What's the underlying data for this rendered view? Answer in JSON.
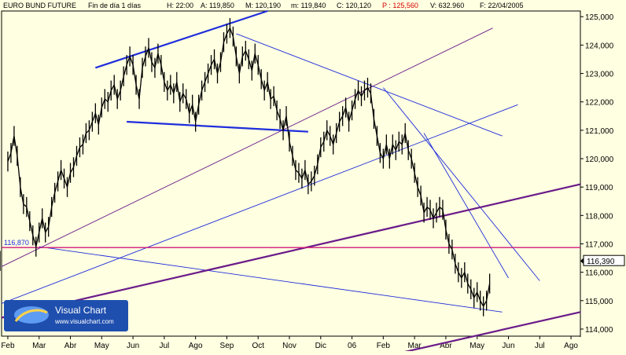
{
  "header": {
    "title": "EURO BUND FUTURE",
    "timeframe": "Fin de día 1 días",
    "hour": "H: 22:00",
    "high": "A: 119,850",
    "max": "M: 120,190",
    "min": "m: 119,840",
    "close": "C: 120,120",
    "p": "P : 125,560",
    "volume": "V: 632.960",
    "date": "F: 22/04/2005"
  },
  "colors": {
    "background": "#ffffe1",
    "text": "#000000",
    "price_line": "#000000",
    "trend_blue": "#1f2ddc",
    "channel_purple": "#6a1b8a",
    "support_magenta": "#d0187a",
    "grid": "#c8c8c8",
    "header_red": "#d40000",
    "scale_panel": "#ffffe1"
  },
  "logo": {
    "brand": "Visual Chart",
    "url": "www.visualchart.com",
    "icon": "visualchart-logo-icon"
  },
  "price_label_left": "116,870",
  "current_price_tag": "116,390",
  "chart_data": {
    "type": "line",
    "title": "EURO BUND FUTURE",
    "x_tick_labels": [
      "Feb",
      "Mar",
      "Abr",
      "May",
      "Jun",
      "Jul",
      "Ago",
      "Sep",
      "Oct",
      "Nov",
      "Dic",
      "06",
      "Feb",
      "Mar",
      "Abr",
      "May",
      "Jun",
      "Jul",
      "Ago"
    ],
    "x_tick_index": [
      0,
      1,
      2,
      3,
      4,
      5,
      6,
      7,
      8,
      9,
      10,
      11,
      12,
      13,
      14,
      15,
      16,
      17,
      18
    ],
    "y_tick_labels": [
      "114,000",
      "115,000",
      "116,000",
      "117,000",
      "118,000",
      "119,000",
      "120,000",
      "121,000",
      "122,000",
      "123,000",
      "124,000",
      "125,000"
    ],
    "y_ticks": [
      114,
      115,
      116,
      117,
      118,
      119,
      120,
      121,
      122,
      123,
      124,
      125
    ],
    "ylim": [
      113.75,
      125.2
    ],
    "xlim": [
      -0.2,
      18.3
    ],
    "grid": false,
    "series": [
      {
        "points_month_index": [
          0.0,
          0.1,
          0.2,
          0.3,
          0.4,
          0.5,
          0.6,
          0.7,
          0.8,
          0.9,
          1.0,
          1.1,
          1.2,
          1.3,
          1.4,
          1.5,
          1.6,
          1.7,
          1.8,
          1.9,
          2.0,
          2.1,
          2.2,
          2.3,
          2.4,
          2.5,
          2.6,
          2.7,
          2.8,
          2.9,
          3.0,
          3.1,
          3.2,
          3.3,
          3.4,
          3.5,
          3.6,
          3.7,
          3.8,
          3.9,
          4.0,
          4.1,
          4.2,
          4.3,
          4.4,
          4.5,
          4.6,
          4.7,
          4.8,
          4.9,
          5.0,
          5.1,
          5.2,
          5.3,
          5.4,
          5.5,
          5.6,
          5.7,
          5.8,
          5.9,
          6.0,
          6.1,
          6.2,
          6.3,
          6.4,
          6.5,
          6.6,
          6.7,
          6.8,
          6.9,
          7.0,
          7.1,
          7.2,
          7.3,
          7.4,
          7.5,
          7.6,
          7.7,
          7.8,
          7.9,
          8.0,
          8.1,
          8.2,
          8.3,
          8.4,
          8.5,
          8.6,
          8.7,
          8.8,
          8.9,
          9.0,
          9.1,
          9.2,
          9.3,
          9.4,
          9.5,
          9.6,
          9.7,
          9.8,
          9.9,
          10.0,
          10.1,
          10.2,
          10.3,
          10.4,
          10.5,
          10.6,
          10.7,
          10.8,
          10.9,
          11.0,
          11.1,
          11.2,
          11.3,
          11.4,
          11.5,
          11.6,
          11.7,
          11.8,
          11.9,
          12.0,
          12.1,
          12.2,
          12.3,
          12.4,
          12.5,
          12.6,
          12.7,
          12.8,
          12.9,
          13.0,
          13.1,
          13.2,
          13.3,
          13.4,
          13.5,
          13.6,
          13.7,
          13.8,
          13.9,
          14.0,
          14.1,
          14.2,
          14.3,
          14.4,
          14.5,
          14.6,
          14.7,
          14.8,
          14.9,
          15.0,
          15.1,
          15.2,
          15.3,
          15.4
        ],
        "values": [
          119.9,
          120.2,
          120.8,
          120.1,
          119.0,
          118.4,
          118.3,
          117.8,
          117.3,
          116.9,
          117.4,
          117.9,
          117.4,
          117.6,
          118.3,
          118.8,
          119.2,
          119.6,
          119.3,
          119.0,
          119.5,
          119.7,
          120.1,
          120.4,
          120.5,
          120.9,
          121.0,
          121.3,
          121.6,
          121.2,
          121.8,
          122.1,
          122.0,
          122.4,
          122.6,
          122.1,
          122.4,
          122.9,
          123.3,
          123.6,
          123.3,
          122.6,
          122.1,
          123.2,
          123.6,
          123.9,
          123.4,
          123.2,
          123.7,
          123.3,
          122.7,
          122.4,
          122.6,
          122.3,
          122.7,
          122.0,
          122.3,
          122.1,
          121.6,
          121.9,
          121.3,
          121.9,
          122.4,
          122.7,
          123.0,
          123.3,
          123.5,
          123.0,
          123.4,
          124.1,
          124.4,
          124.6,
          124.3,
          123.6,
          123.0,
          123.6,
          123.8,
          123.5,
          123.1,
          123.7,
          123.3,
          122.8,
          122.4,
          122.7,
          122.1,
          122.2,
          121.7,
          121.4,
          121.0,
          121.5,
          120.6,
          120.1,
          119.6,
          119.5,
          119.3,
          119.6,
          119.1,
          119.2,
          119.4,
          119.8,
          120.4,
          120.6,
          121.0,
          120.8,
          120.5,
          120.9,
          121.3,
          121.5,
          121.8,
          121.3,
          121.7,
          122.1,
          122.4,
          122.2,
          122.4,
          122.5,
          122.3,
          121.4,
          120.8,
          120.2,
          120.0,
          120.5,
          120.0,
          120.5,
          120.3,
          120.6,
          120.5,
          120.9,
          120.3,
          120.0,
          119.5,
          119.0,
          118.7,
          118.1,
          118.3,
          118.2,
          117.9,
          118.1,
          118.3,
          118.2,
          117.5,
          117.0,
          116.8,
          116.3,
          116.0,
          115.8,
          116.0,
          115.6,
          115.4,
          115.1,
          115.3,
          115.0,
          114.8,
          115.0,
          115.6,
          116.4
        ]
      }
    ],
    "trendlines": [
      {
        "kind": "upper-channel",
        "color": "trend_blue",
        "from": [
          2.8,
          123.2
        ],
        "to": [
          8.3,
          125.2
        ]
      },
      {
        "kind": "neckline",
        "color": "trend_blue",
        "from": [
          3.8,
          121.3
        ],
        "to": [
          9.6,
          120.95
        ]
      },
      {
        "kind": "descending",
        "color": "trend_blue",
        "from": [
          7.3,
          124.4
        ],
        "to": [
          15.8,
          120.8
        ]
      },
      {
        "kind": "descending",
        "color": "trend_blue",
        "from": [
          12.0,
          122.5
        ],
        "to": [
          17.0,
          115.7
        ]
      },
      {
        "kind": "descending",
        "color": "trend_blue",
        "from": [
          13.3,
          120.9
        ],
        "to": [
          16.0,
          115.8
        ]
      },
      {
        "kind": "long-rising",
        "color": "channel_purple",
        "from": [
          -0.2,
          116.2
        ],
        "to": [
          15.5,
          124.6
        ]
      },
      {
        "kind": "rising",
        "color": "trend_blue",
        "from": [
          -0.2,
          114.9
        ],
        "to": [
          16.3,
          121.9
        ]
      },
      {
        "kind": "decline-fan",
        "color": "trend_blue",
        "from": [
          1.0,
          116.9
        ],
        "to": [
          15.8,
          114.6
        ]
      },
      {
        "kind": "thick-rising",
        "color": "channel_purple",
        "from": [
          -0.2,
          114.4
        ],
        "to": [
          18.3,
          119.1
        ]
      },
      {
        "kind": "thick-rising-low",
        "color": "channel_purple",
        "from": [
          11.5,
          112.9
        ],
        "to": [
          18.3,
          114.6
        ]
      }
    ],
    "horizontal_lines": [
      {
        "value": 116.87,
        "color": "support_magenta"
      }
    ]
  }
}
